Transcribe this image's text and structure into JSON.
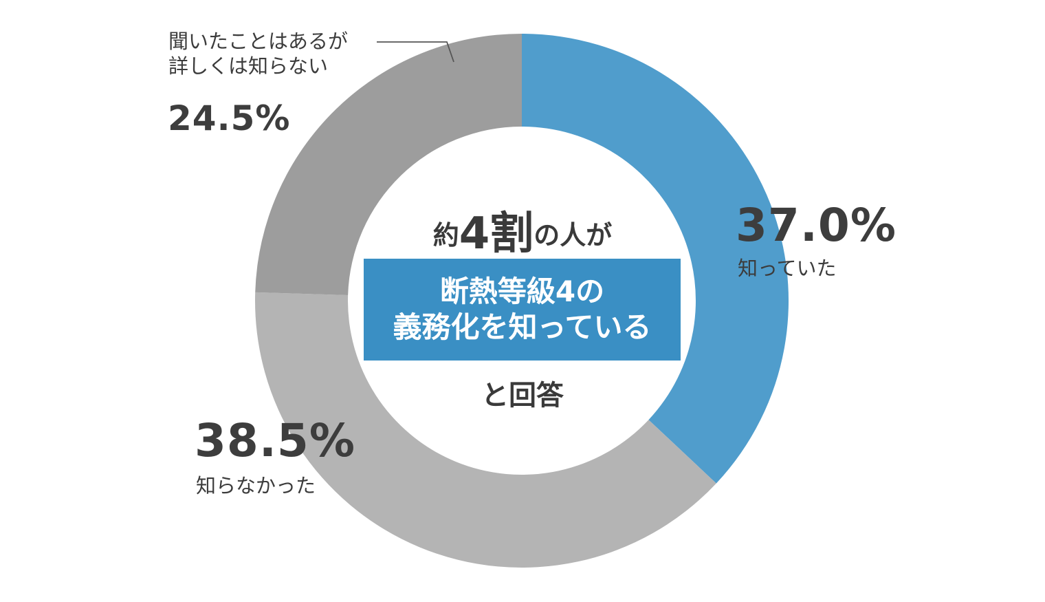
{
  "chart_data": {
    "type": "pie",
    "donut": true,
    "slices": [
      {
        "label": "知っていた",
        "value": 37.0,
        "value_label": "37.0%",
        "color": "#509dcc"
      },
      {
        "label": "知らなかった",
        "value": 38.5,
        "value_label": "38.5%",
        "color": "#b4b4b4"
      },
      {
        "label": "聞いたことはあるが詳しくは知らない",
        "value": 24.5,
        "value_label": "24.5%",
        "color": "#9d9d9d"
      }
    ]
  },
  "center": {
    "prefix": "約",
    "emphasis": "4割",
    "suffix": "の人が",
    "box_line1": "断熱等級4の",
    "box_line2": "義務化を知っている",
    "line3": "と回答",
    "box_color": "#3a8fc4"
  },
  "labels": {
    "known_pct": "37.0%",
    "known_text": "知っていた",
    "unknown_pct": "38.5%",
    "unknown_text": "知らなかった",
    "heard_text_line1": "聞いたことはあるが",
    "heard_text_line2": "詳しくは知らない",
    "heard_pct": "24.5%"
  }
}
